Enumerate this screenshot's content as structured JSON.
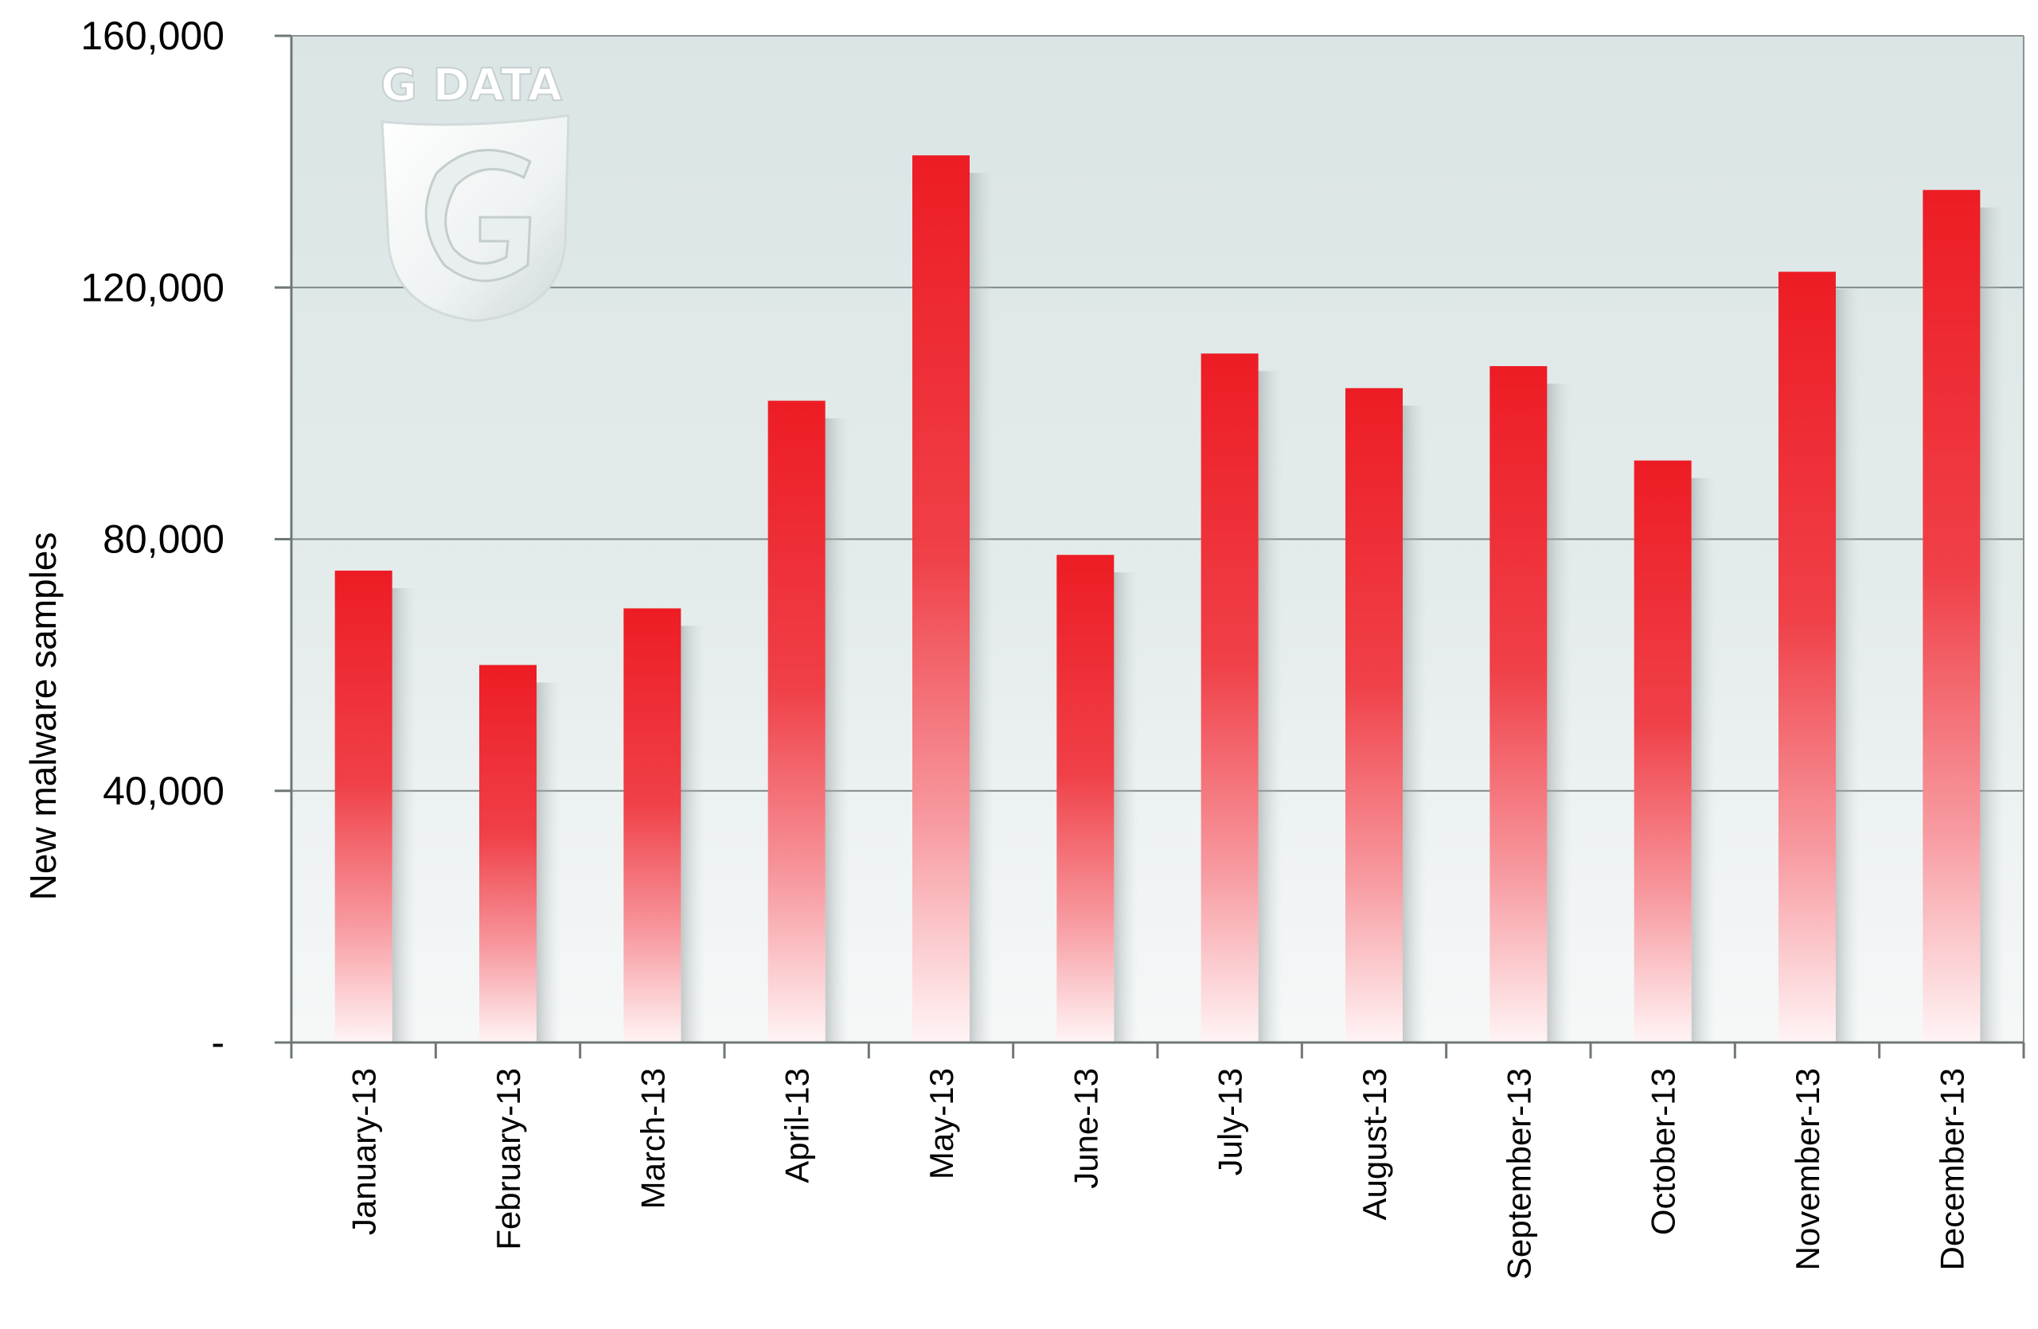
{
  "chart_data": {
    "type": "bar",
    "categories": [
      "January-13",
      "February-13",
      "March-13",
      "April-13",
      "May-13",
      "June-13",
      "July-13",
      "August-13",
      "September-13",
      "October-13",
      "November-13",
      "December-13"
    ],
    "series": [
      {
        "values": [
          75000,
          60000,
          69000,
          102000,
          141000,
          77500,
          109500,
          104000,
          107500,
          92500,
          122500,
          135500
        ]
      }
    ],
    "ylabel": "New malware samples",
    "xlabel": "",
    "ylim": [
      0,
      160000
    ],
    "yticks": [
      0,
      40000,
      80000,
      120000,
      160000
    ],
    "ytick_labels": [
      "-",
      "40,000",
      "80,000",
      "120,000",
      "160,000"
    ],
    "grid": true,
    "bar_color": "#ed1c24",
    "plot_background": "#dde6e6",
    "watermark": "G DATA"
  }
}
